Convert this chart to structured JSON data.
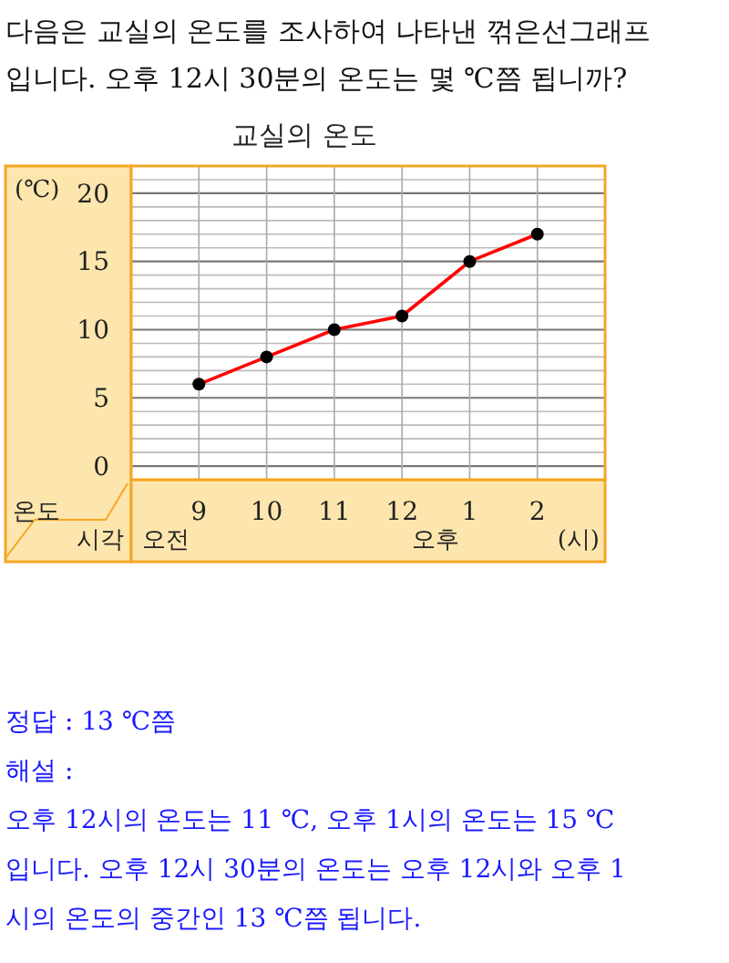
{
  "chart_data": {
    "type": "line",
    "title": "교실의 온도",
    "ylabel": "(℃)",
    "xlabel": "(시)",
    "categories": [
      "9",
      "10",
      "11",
      "12",
      "1",
      "2"
    ],
    "series": [
      {
        "color": "#ff0000",
        "values": [
          6,
          8,
          10,
          11,
          15,
          17
        ]
      }
    ],
    "marker": "circle",
    "grid": true,
    "ylim": [
      -1,
      22
    ],
    "yticks": [
      0,
      {
        "value": 1,
        "label": null
      },
      {
        "value": 2,
        "label": null
      },
      {
        "value": 3,
        "label": null
      },
      {
        "value": 4,
        "label": null
      },
      5,
      {
        "value": 6,
        "label": null
      },
      {
        "value": 7,
        "label": null
      },
      {
        "value": 8,
        "label": null
      },
      {
        "value": 9,
        "label": null
      },
      10,
      {
        "value": 11,
        "label": null
      },
      {
        "value": 12,
        "label": null
      },
      {
        "value": 13,
        "label": null
      },
      {
        "value": 14,
        "label": null
      },
      15,
      {
        "value": 16,
        "label": null
      },
      {
        "value": 17,
        "label": null
      },
      {
        "value": 18,
        "label": null
      },
      {
        "value": 19,
        "label": null
      },
      20,
      {
        "value": 21,
        "label": null
      }
    ],
    "annotations": [
      "다음은 교실의 온도를 조사하여 나타낸 꺾은선그래프",
      "입니다. 오후 12시 30분의 온도는 몇 ℃쯤 됩니까?",
      "온도",
      "시각",
      "오전",
      "오후",
      "정답 : 13 ℃쯤",
      "해설 :",
      "오후 12시의 온도는 11 ℃, 오후 1시의 온도는 15 ℃",
      "입니다. 오후 12시 30분의 온도는 오후 12시와 오후 1",
      "시의 온도의 중간인 13 ℃쯤 됩니다."
    ]
  }
}
